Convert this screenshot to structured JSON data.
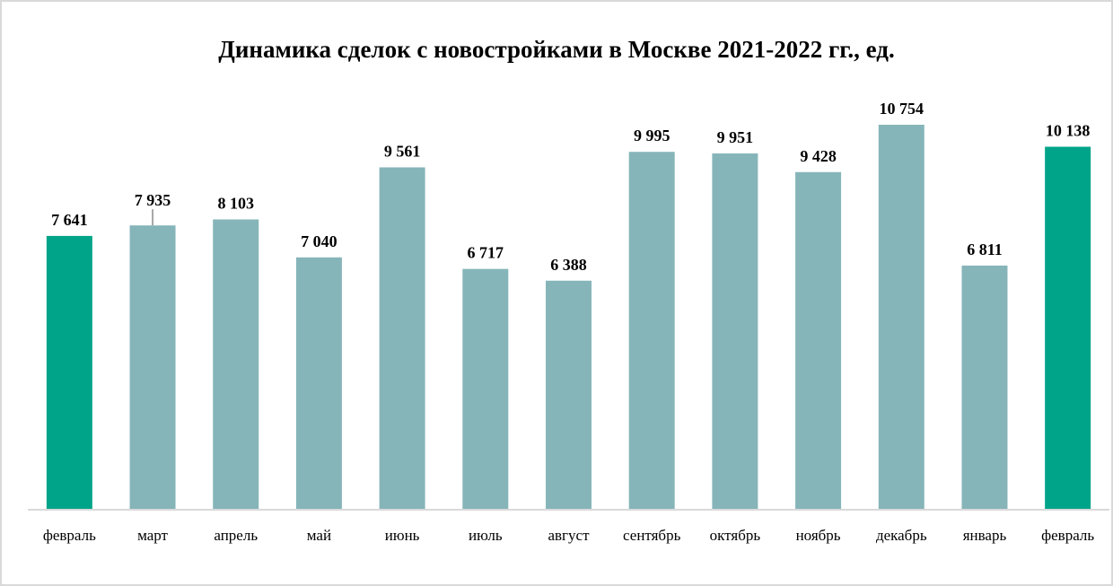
{
  "chart_data": {
    "type": "bar",
    "title": "Динамика сделок с новостройками в Москве 2021-2022 гг., ед.",
    "xlabel": "",
    "ylabel": "",
    "categories": [
      "февраль",
      "март",
      "апрель",
      "май",
      "июнь",
      "июль",
      "август",
      "сентябрь",
      "октябрь",
      "ноябрь",
      "декабрь",
      "январь",
      "февраль"
    ],
    "values": [
      7641,
      7935,
      8103,
      7040,
      9561,
      6717,
      6388,
      9995,
      9951,
      9428,
      10754,
      6811,
      10138
    ],
    "data_labels": [
      "7 641",
      "7 935",
      "8 103",
      "7 040",
      "9 561",
      "6 717",
      "6 388",
      "9 995",
      "9 951",
      "9 428",
      "10 754",
      "6 811",
      "10 138"
    ],
    "highlighted": [
      0,
      12
    ],
    "ylim": [
      0,
      10754
    ],
    "grid": false,
    "legend": "none",
    "colors": {
      "default": "#86B5B9",
      "highlight": "#00A488",
      "axis": "#D9D9D9"
    }
  }
}
